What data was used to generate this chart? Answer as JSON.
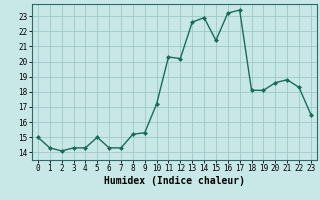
{
  "x": [
    0,
    1,
    2,
    3,
    4,
    5,
    6,
    7,
    8,
    9,
    10,
    11,
    12,
    13,
    14,
    15,
    16,
    17,
    18,
    19,
    20,
    21,
    22,
    23
  ],
  "y": [
    15.0,
    14.3,
    14.1,
    14.3,
    14.3,
    15.0,
    14.3,
    14.3,
    15.2,
    15.3,
    17.2,
    20.3,
    20.2,
    22.6,
    22.9,
    21.4,
    23.2,
    23.4,
    18.1,
    18.1,
    18.6,
    18.8,
    18.3,
    16.5
  ],
  "line_color": "#1a6b5a",
  "marker": "D",
  "markersize": 2.0,
  "linewidth": 1.0,
  "xlabel": "Humidex (Indice chaleur)",
  "xlim": [
    -0.5,
    23.5
  ],
  "ylim": [
    13.5,
    23.8
  ],
  "yticks": [
    14,
    15,
    16,
    17,
    18,
    19,
    20,
    21,
    22,
    23
  ],
  "xticks": [
    0,
    1,
    2,
    3,
    4,
    5,
    6,
    7,
    8,
    9,
    10,
    11,
    12,
    13,
    14,
    15,
    16,
    17,
    18,
    19,
    20,
    21,
    22,
    23
  ],
  "bg_color": "#c8e8e8",
  "grid_color": "#a0c8c8",
  "tick_fontsize": 5.5,
  "label_fontsize": 7.0
}
